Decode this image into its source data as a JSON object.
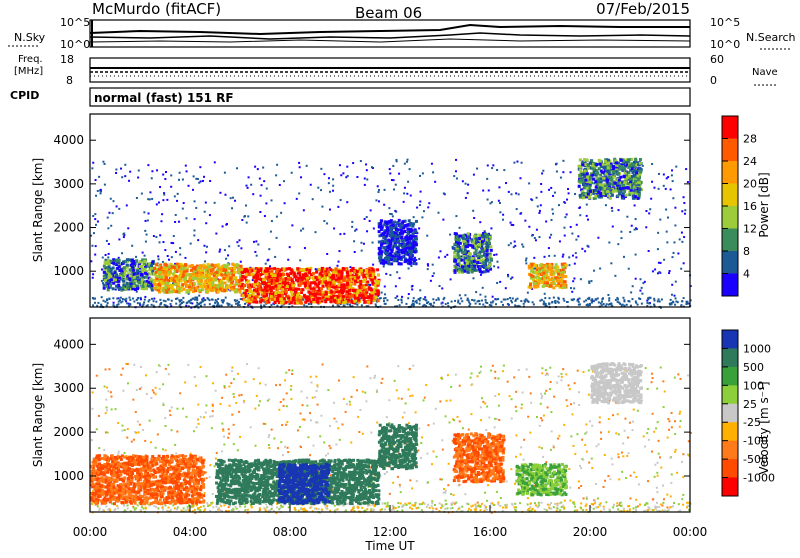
{
  "header": {
    "station": "McMurdo (fitACF)",
    "beam": "Beam 06",
    "date": "07/Feb/2015"
  },
  "top_panels": {
    "nsky_label": "N.Sky",
    "nsearch_label": "N.Search",
    "noise_ticks_left": [
      "10^5",
      "10^0"
    ],
    "noise_ticks_right": [
      "10^5",
      "10^0"
    ],
    "freq_label_1": "Freq.",
    "freq_label_2": "[MHz]",
    "freq_ticks": [
      "18",
      "8"
    ],
    "nave_label": "Nave",
    "nave_ticks": [
      "60",
      "0"
    ],
    "cpid_label": "CPID",
    "cpid_text": "normal (fast) 151 RF"
  },
  "chart_data": [
    {
      "type": "heatmap",
      "title": "",
      "ylabel": "Slant Range [km]",
      "xlabel": "",
      "ylim": [
        180,
        4600
      ],
      "yticks": [
        "1000",
        "2000",
        "3000",
        "4000"
      ],
      "colorbar_label": "Power [dB]",
      "colorbar_ticks": [
        "28",
        "24",
        "20",
        "16",
        "12",
        "8",
        "4"
      ],
      "colorbar_colors": [
        "#ff0000",
        "#ff5a00",
        "#ff9a00",
        "#e6c400",
        "#9ccc3a",
        "#3a8c5a",
        "#1c5a96",
        "#1a00ff"
      ],
      "ionospheric_echoes": [
        {
          "t": [
            0.5,
            2.5
          ],
          "r": [
            600,
            1300
          ],
          "level": "medium"
        },
        {
          "t": [
            2.5,
            6.0
          ],
          "r": [
            550,
            1200
          ],
          "level": "strong"
        },
        {
          "t": [
            6.0,
            11.5
          ],
          "r": [
            300,
            1100
          ],
          "level": "very strong"
        },
        {
          "t": [
            11.5,
            13.0
          ],
          "r": [
            1200,
            2200
          ],
          "level": "weak"
        },
        {
          "t": [
            14.5,
            16.0
          ],
          "r": [
            1000,
            1900
          ],
          "level": "medium"
        },
        {
          "t": [
            17.5,
            19.0
          ],
          "r": [
            650,
            1200
          ],
          "level": "strong"
        },
        {
          "t": [
            19.5,
            22.0
          ],
          "r": [
            2700,
            3600
          ],
          "level": "medium"
        }
      ]
    },
    {
      "type": "heatmap",
      "title": "",
      "ylabel": "Slant Range [km]",
      "xlabel": "Time UT",
      "ylim": [
        180,
        4600
      ],
      "yticks": [
        "1000",
        "2000",
        "3000",
        "4000"
      ],
      "xticks": [
        "00:00",
        "04:00",
        "08:00",
        "12:00",
        "16:00",
        "20:00",
        "00:00"
      ],
      "colorbar_label": "Velocity [m s⁻¹]",
      "colorbar_ticks": [
        "1000",
        "500",
        "100",
        "25",
        "-25",
        "-100",
        "-500",
        "-1000"
      ],
      "colorbar_colors": [
        "#1836b4",
        "#2e7a5a",
        "#3aa03a",
        "#8ccf3a",
        "#c8c8c8",
        "#ffb000",
        "#ff7a1a",
        "#ff4a00",
        "#ff0000"
      ],
      "velocity_regions": [
        {
          "t": [
            0.0,
            4.5
          ],
          "r": [
            400,
            1500
          ],
          "velocity": "-100 to -500"
        },
        {
          "t": [
            5.0,
            11.5
          ],
          "r": [
            400,
            1400
          ],
          "velocity": "100 to 500"
        },
        {
          "t": [
            7.5,
            9.5
          ],
          "r": [
            400,
            1300
          ],
          "velocity": "500 to 1000"
        },
        {
          "t": [
            11.5,
            13.0
          ],
          "r": [
            1200,
            2200
          ],
          "velocity": "100 to 500"
        },
        {
          "t": [
            14.5,
            16.5
          ],
          "r": [
            900,
            2000
          ],
          "velocity": "-100 to -500"
        },
        {
          "t": [
            17.0,
            19.0
          ],
          "r": [
            600,
            1300
          ],
          "velocity": "25 to 100"
        },
        {
          "t": [
            20.0,
            22.0
          ],
          "r": [
            2700,
            3600
          ],
          "velocity": "-25 to 25"
        }
      ]
    }
  ]
}
